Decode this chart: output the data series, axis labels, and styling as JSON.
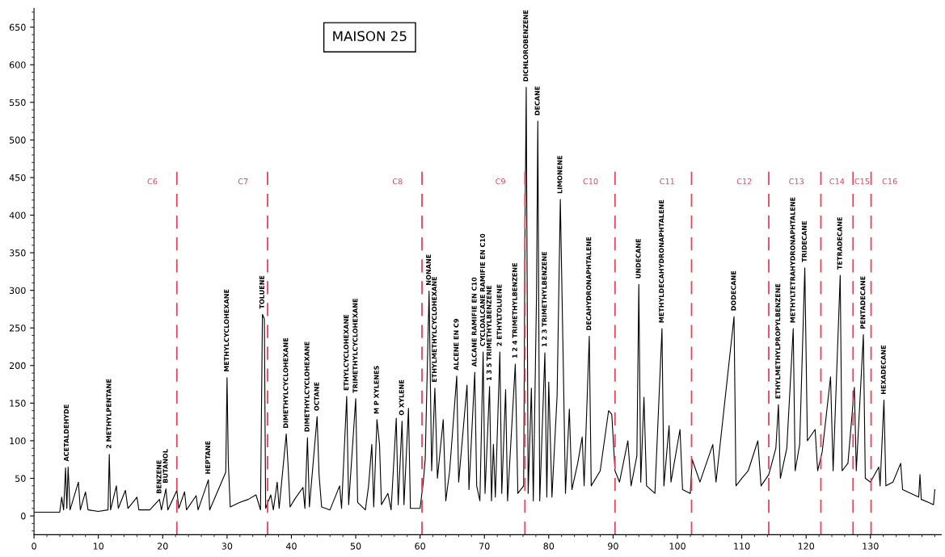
{
  "chart_data": {
    "type": "line",
    "title": "MAISON 25",
    "x": [
      0,
      4,
      4.3,
      4.6,
      4.9,
      5.1,
      5.3,
      5.6,
      6.9,
      7.2,
      8,
      8.4,
      10,
      11.5,
      11.7,
      11.9,
      12.8,
      13.1,
      14.2,
      14.6,
      16,
      16.3,
      18,
      19.5,
      19.8,
      20.5,
      20.8,
      22.2,
      22.5,
      23.4,
      23.7,
      25.2,
      25.5,
      27.1,
      27.3,
      29.8,
      30,
      30.2,
      30.5,
      32,
      33.3,
      34.5,
      35.2,
      35.5,
      35.8,
      36,
      36.8,
      37.2,
      37.8,
      38.1,
      39.2,
      39.5,
      39.8,
      40.5,
      41.8,
      42.1,
      42.5,
      42.8,
      44,
      44.3,
      44.7,
      46,
      47.5,
      47.8,
      48.6,
      48.9,
      50,
      50.3,
      51.5,
      52,
      52.5,
      52.8,
      53.3,
      53.7,
      54,
      55,
      55.5,
      56.3,
      56.6,
      57.2,
      57.5,
      58.2,
      58.5,
      60,
      60.5,
      60.8,
      61.4,
      61.8,
      62.3,
      62.7,
      63.6,
      64,
      64.6,
      65.7,
      66,
      67.3,
      67.6,
      68.5,
      68.8,
      69.3,
      69.8,
      70.1,
      70.8,
      71.1,
      71.4,
      71.7,
      72.4,
      72.7,
      73.3,
      73.6,
      74.8,
      75.2,
      76.1,
      76.3,
      76.5,
      76.8,
      77.3,
      77.6,
      78.1,
      78.3,
      78.6,
      79.4,
      79.7,
      80,
      80.5,
      81.3,
      81.8,
      82.2,
      82.6,
      83.2,
      83.6,
      84.5,
      85.2,
      85.5,
      86.3,
      86.6,
      88,
      89.3,
      89.8,
      90.3,
      91,
      92.3,
      92.8,
      93.7,
      94,
      94.3,
      94.8,
      95.2,
      96.5,
      97.6,
      97.9,
      98.7,
      99,
      100.4,
      100.8,
      102,
      102.3,
      103.5,
      105.5,
      106,
      108.8,
      109.1,
      110,
      111,
      112.5,
      113,
      114.2,
      115.3,
      115.7,
      116,
      117,
      118,
      118.3,
      119,
      119.8,
      120.2,
      121.4,
      121.8,
      122.5,
      123.8,
      124.2,
      125.3,
      125.6,
      126.5,
      127.5,
      127.8,
      128.9,
      129.2,
      130,
      131.3,
      131.5,
      132.1,
      132.4,
      133.5,
      134.7,
      135,
      137.5,
      137.7,
      137.9,
      139,
      139.8,
      140
    ],
    "series": [
      {
        "color": "#000000",
        "values": [
          5,
          5,
          25,
          8,
          64,
          10,
          65,
          8,
          45,
          8,
          32,
          8,
          6,
          8,
          82,
          8,
          40,
          10,
          34,
          10,
          25,
          8,
          8,
          22,
          8,
          36,
          8,
          34,
          10,
          32,
          8,
          27,
          8,
          48,
          8,
          58,
          184,
          70,
          12,
          18,
          22,
          28,
          8,
          268,
          262,
          10,
          28,
          8,
          45,
          10,
          109,
          65,
          12,
          22,
          38,
          10,
          104,
          12,
          132,
          55,
          12,
          8,
          40,
          10,
          159,
          15,
          156,
          18,
          8,
          40,
          95,
          12,
          128,
          95,
          15,
          30,
          8,
          130,
          15,
          126,
          15,
          143,
          10,
          10,
          45,
          75,
          299,
          60,
          170,
          50,
          128,
          20,
          60,
          186,
          45,
          174,
          35,
          191,
          40,
          20,
          218,
          30,
          172,
          20,
          95,
          25,
          218,
          30,
          168,
          20,
          202,
          30,
          40,
          370,
          570,
          30,
          170,
          20,
          294,
          525,
          20,
          217,
          25,
          178,
          25,
          160,
          421,
          230,
          30,
          142,
          35,
          70,
          105,
          40,
          239,
          40,
          60,
          140,
          135,
          60,
          45,
          100,
          40,
          80,
          308,
          45,
          158,
          40,
          30,
          249,
          40,
          120,
          45,
          115,
          35,
          30,
          75,
          45,
          95,
          45,
          265,
          40,
          50,
          60,
          100,
          40,
          55,
          90,
          148,
          50,
          90,
          249,
          60,
          95,
          330,
          100,
          115,
          60,
          85,
          185,
          60,
          320,
          60,
          70,
          171,
          60,
          241,
          50,
          45,
          65,
          40,
          154,
          40,
          45,
          70,
          35,
          25,
          55,
          22,
          18,
          15,
          35
        ]
      }
    ],
    "xlim": [
      0,
      141
    ],
    "ylim": [
      -25,
      675
    ],
    "xticks": [
      0,
      10,
      20,
      30,
      40,
      50,
      60,
      70,
      80,
      90,
      100,
      110,
      120,
      130
    ],
    "yticks": [
      0,
      50,
      100,
      150,
      200,
      250,
      300,
      350,
      400,
      450,
      500,
      550,
      600,
      650
    ],
    "ref_lines": [
      {
        "axis": "x",
        "value": 22.2,
        "color": "#e8425a",
        "line_style": "dashed"
      },
      {
        "axis": "x",
        "value": 36.3,
        "color": "#e8425a",
        "line_style": "dashed"
      },
      {
        "axis": "x",
        "value": 60.3,
        "color": "#e8425a",
        "line_style": "dashed"
      },
      {
        "axis": "x",
        "value": 76.3,
        "color": "#e8425a",
        "line_style": "dashed"
      },
      {
        "axis": "x",
        "value": 90.3,
        "color": "#e8425a",
        "line_style": "dashed"
      },
      {
        "axis": "x",
        "value": 102.2,
        "color": "#e8425a",
        "line_style": "dashed"
      },
      {
        "axis": "x",
        "value": 114.2,
        "color": "#e8425a",
        "line_style": "dashed"
      },
      {
        "axis": "x",
        "value": 122.3,
        "color": "#e8425a",
        "line_style": "dashed"
      },
      {
        "axis": "x",
        "value": 127.3,
        "color": "#e8425a",
        "line_style": "dashed"
      },
      {
        "axis": "x",
        "value": 130.1,
        "color": "#e8425a",
        "line_style": "dashed"
      }
    ],
    "grid": false,
    "legend": false,
    "annotations": [
      "C6",
      "C7",
      "C8",
      "C9",
      "C10",
      "C11",
      "C12",
      "C13",
      "C14",
      "C15",
      "C16",
      {
        "text": "ACETALDEHYDE",
        "x": 5.1,
        "y": 65
      },
      {
        "text": "2 METHYLPENTANE",
        "x": 11.7,
        "y": 82
      },
      {
        "text": "BENZENE",
        "x": 19.5,
        "y": 22
      },
      {
        "text": "BUTANOL",
        "x": 20.5,
        "y": 36
      },
      {
        "text": "HEPTANE",
        "x": 27.1,
        "y": 48
      },
      {
        "text": "METHYLCYCLOHEXANE",
        "x": 30,
        "y": 184
      },
      {
        "text": "TOLUENE",
        "x": 35.5,
        "y": 268
      },
      {
        "text": "DIMETHYLCYCLOHEXANE",
        "x": 39.2,
        "y": 109
      },
      {
        "text": "DIMETHYLCYCLOHEXANE",
        "x": 42.5,
        "y": 104
      },
      {
        "text": "OCTANE",
        "x": 44,
        "y": 132
      },
      {
        "text": "ETHYLCYCLOHEXANE",
        "x": 48.6,
        "y": 159
      },
      {
        "text": "TRIMETHYLCYCLOHEXANE",
        "x": 50,
        "y": 156
      },
      {
        "text": "M P XYLENES",
        "x": 53.3,
        "y": 128
      },
      {
        "text": "O XYLENE",
        "x": 57.2,
        "y": 126
      },
      {
        "text": "NONANE",
        "x": 61.4,
        "y": 299
      },
      {
        "text": "ETHYLMETHYLCYCLOHEXANE",
        "x": 62.3,
        "y": 170
      },
      {
        "text": "ALCENE EN C9",
        "x": 65.7,
        "y": 186
      },
      {
        "text": "ALCANE RAMIFIE EN C10",
        "x": 68.5,
        "y": 191
      },
      {
        "text": "CYCLOALCANE RAMIFIE EN C10",
        "x": 69.8,
        "y": 218
      },
      {
        "text": "1 3 5 TRIMETHYLBENZENE",
        "x": 70.8,
        "y": 172
      },
      {
        "text": "2 ETHYLTOLUENE",
        "x": 72.4,
        "y": 218
      },
      {
        "text": "1 2 4 TRIMETHYLBENZENE",
        "x": 74.8,
        "y": 202
      },
      {
        "text": "DICHLOROBENZENE",
        "x": 76.5,
        "y": 570
      },
      {
        "text": "DECANE",
        "x": 78.3,
        "y": 525
      },
      {
        "text": "1 2 3 TRIMETHYLBENZENE",
        "x": 79.4,
        "y": 217
      },
      {
        "text": "LIMONENE",
        "x": 81.8,
        "y": 421
      },
      {
        "text": "DECAHYDRONAPHTALENE",
        "x": 86.3,
        "y": 239
      },
      {
        "text": "UNDECANE",
        "x": 94,
        "y": 308
      },
      {
        "text": "METHYLDECAHYDRONAPHTALENE",
        "x": 97.6,
        "y": 249
      },
      {
        "text": "DODECANE",
        "x": 108.8,
        "y": 265
      },
      {
        "text": "ETHYLMETHYLPROPYLBENZENE",
        "x": 115.7,
        "y": 148
      },
      {
        "text": "METHYLTETRAHYDRONAPHTALENE",
        "x": 118,
        "y": 249
      },
      {
        "text": "TRIDECANE",
        "x": 119.8,
        "y": 330
      },
      {
        "text": "TETRADECANE",
        "x": 125.3,
        "y": 320
      },
      {
        "text": "PENTADECANE",
        "x": 128.9,
        "y": 241
      },
      {
        "text": "HEXADECANE",
        "x": 132.1,
        "y": 154
      }
    ]
  }
}
